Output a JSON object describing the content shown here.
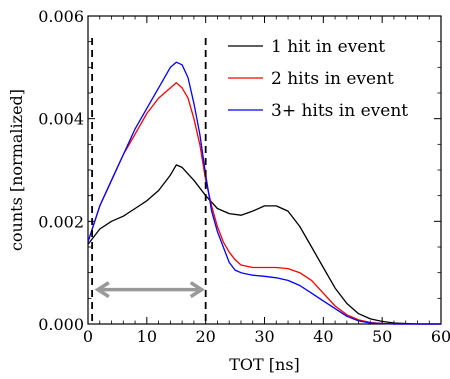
{
  "chart_data": {
    "type": "line",
    "title": "",
    "xlabel": "TOT [ns]",
    "ylabel": "counts [normalized]",
    "xlim": [
      0,
      60
    ],
    "ylim": [
      0,
      0.006
    ],
    "xticks": [
      0,
      10,
      20,
      30,
      40,
      50,
      60
    ],
    "xtick_labels": [
      "0",
      "10",
      "20",
      "30",
      "40",
      "50",
      "60"
    ],
    "yticks": [
      0,
      0.002,
      0.004,
      0.006
    ],
    "ytick_labels": [
      "0.000",
      "0.002",
      "0.004",
      "0.006"
    ],
    "grid": false,
    "legend_position": "top-right",
    "series": [
      {
        "name": "1 hit in event",
        "color": "#000000",
        "x": [
          0,
          2,
          4,
          6,
          8,
          10,
          12,
          14,
          15,
          16,
          18,
          20,
          22,
          24,
          26,
          28,
          30,
          32,
          34,
          36,
          38,
          40,
          42,
          44,
          46,
          48,
          50,
          52,
          54,
          56,
          58,
          60
        ],
        "y": [
          0.00155,
          0.00185,
          0.002,
          0.0021,
          0.00225,
          0.0024,
          0.0026,
          0.0029,
          0.0031,
          0.00305,
          0.0028,
          0.0025,
          0.00225,
          0.00215,
          0.00212,
          0.0022,
          0.0023,
          0.0023,
          0.0022,
          0.0019,
          0.0015,
          0.0011,
          0.0007,
          0.0004,
          0.0002,
          0.0001,
          5e-05,
          2e-05,
          1e-05,
          0,
          0,
          0
        ]
      },
      {
        "name": "2 hits in event",
        "color": "#ff0000",
        "x": [
          0,
          2,
          4,
          6,
          8,
          10,
          12,
          14,
          15,
          16,
          17,
          18,
          19,
          20,
          21,
          22,
          23,
          24,
          25,
          26,
          28,
          30,
          32,
          34,
          36,
          38,
          40,
          42,
          44,
          46,
          48,
          50,
          52,
          55,
          58,
          60
        ],
        "y": [
          0.0016,
          0.0023,
          0.0028,
          0.0033,
          0.0037,
          0.0041,
          0.0044,
          0.0046,
          0.0047,
          0.0046,
          0.0044,
          0.004,
          0.0035,
          0.0028,
          0.0023,
          0.0019,
          0.0016,
          0.0014,
          0.00125,
          0.00115,
          0.0011,
          0.0011,
          0.0011,
          0.00108,
          0.001,
          0.00085,
          0.0006,
          0.00035,
          0.00018,
          8e-05,
          3e-05,
          1e-05,
          0,
          0,
          0,
          0
        ]
      },
      {
        "name": "3+ hits in event",
        "color": "#0000ff",
        "x": [
          0,
          2,
          4,
          6,
          8,
          10,
          12,
          14,
          15,
          16,
          17,
          18,
          19,
          20,
          21,
          22,
          23,
          24,
          25,
          26,
          28,
          30,
          32,
          34,
          36,
          38,
          40,
          42,
          44,
          46,
          48,
          50,
          52,
          55,
          58,
          60
        ],
        "y": [
          0.0016,
          0.0023,
          0.0028,
          0.0033,
          0.0038,
          0.0042,
          0.0046,
          0.005,
          0.0051,
          0.00505,
          0.0048,
          0.0043,
          0.0037,
          0.0029,
          0.0022,
          0.0018,
          0.0015,
          0.0012,
          0.00105,
          0.001,
          0.00095,
          0.00093,
          0.0009,
          0.00085,
          0.00075,
          0.0006,
          0.00045,
          0.0003,
          0.00015,
          6e-05,
          2e-05,
          1e-05,
          0,
          0,
          0,
          0
        ]
      }
    ],
    "annotations": {
      "vlines_x": [
        0.7,
        20
      ],
      "arrow": {
        "x_start": 1.5,
        "x_end": 19.5,
        "y": 0.00067,
        "color": "#999999"
      }
    }
  }
}
